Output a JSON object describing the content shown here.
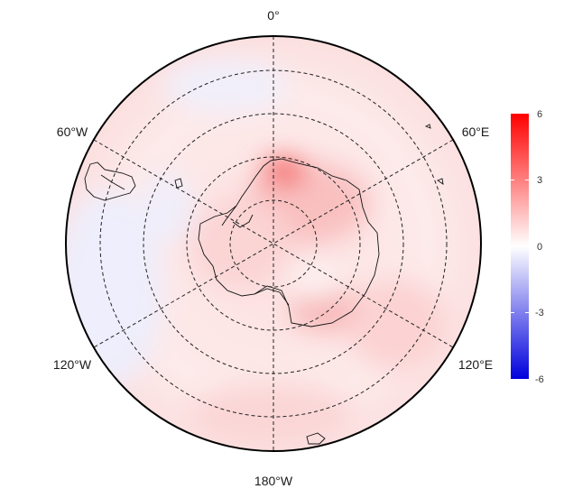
{
  "map": {
    "projection": "south-polar-stereographic",
    "longitude_labels": {
      "top": "0°",
      "upper_left": "60°W",
      "upper_right": "60°E",
      "lower_left": "120°W",
      "lower_right": "120°E",
      "bottom": "180°W"
    },
    "graticule": "dashed",
    "colors": {
      "negative": "#0000dd",
      "zero": "#ffffff",
      "positive": "#ff0000"
    }
  },
  "colorbar": {
    "ticks": [
      "6",
      "3",
      "0",
      "-3",
      "-6"
    ],
    "range": [
      -6,
      6
    ]
  }
}
